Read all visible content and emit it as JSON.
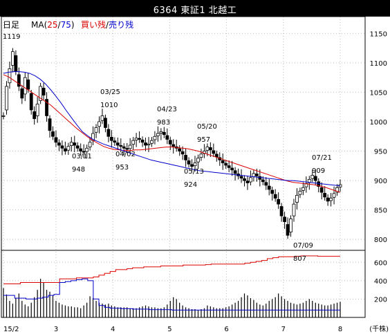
{
  "title": "6364 東証1 北越工",
  "legend": {
    "period": "日足",
    "ma_prefix": "MA(",
    "ma_short": "25",
    "ma_sep": "/",
    "ma_long": "75",
    "ma_suffix": ")",
    "buy_label": "買い残",
    "slash": "/",
    "sell_label": "売り残"
  },
  "colors": {
    "ma_short": "#dd0000",
    "ma_long": "#0000cc",
    "buy": "#dd0000",
    "sell": "#0000cc",
    "grid": "#bbbbbb",
    "axis": "#000000"
  },
  "chart_data": {
    "type": "candlestick",
    "price_axis": {
      "ylim": [
        785,
        1155
      ],
      "ticks": [
        800,
        850,
        900,
        950,
        1000,
        1050,
        1100,
        1150
      ]
    },
    "volume_axis": {
      "unit": "(千株)",
      "ylim": [
        0,
        700
      ],
      "ticks": [
        200,
        400,
        600
      ]
    },
    "x_labels": [
      "15/2",
      "3",
      "4",
      "5",
      "6",
      "7",
      "8"
    ],
    "annotations": [
      {
        "date": "",
        "value": "1119"
      },
      {
        "date": "03/11",
        "value": "948"
      },
      {
        "date": "03/25",
        "value": "1010"
      },
      {
        "date": "04/02",
        "value": "953"
      },
      {
        "date": "04/23",
        "value": "983"
      },
      {
        "date": "05/13",
        "value": "924"
      },
      {
        "date": "05/20",
        "value": "957"
      },
      {
        "date": "07/09",
        "value": "807"
      },
      {
        "date": "07/21",
        "value": "909"
      }
    ],
    "price_path": [
      1010,
      1060,
      1090,
      1119,
      1085,
      1060,
      1040,
      1075,
      1055,
      1020,
      1005,
      1030,
      1060,
      1045,
      1010,
      985,
      975,
      965,
      960,
      955,
      950,
      958,
      965,
      960,
      955,
      950,
      948,
      955,
      965,
      980,
      990,
      1000,
      1010,
      990,
      975,
      968,
      965,
      960,
      958,
      955,
      953,
      960,
      968,
      972,
      970,
      965,
      960,
      962,
      968,
      975,
      980,
      983,
      978,
      970,
      962,
      958,
      955,
      950,
      945,
      935,
      928,
      924,
      930,
      938,
      945,
      950,
      957,
      952,
      946,
      940,
      935,
      930,
      926,
      922,
      918,
      912,
      908,
      904,
      900,
      896,
      905,
      912,
      908,
      902,
      898,
      892,
      885,
      878,
      870,
      860,
      840,
      830,
      807,
      835,
      860,
      875,
      882,
      888,
      895,
      902,
      909,
      900,
      890,
      880,
      872,
      865,
      870,
      878,
      888,
      893
    ],
    "ma25_path": [
      1080,
      1076,
      1070,
      1064,
      1058,
      1052,
      1046,
      1040,
      1034,
      1028,
      1020,
      1012,
      1004,
      996,
      988,
      981,
      974,
      968,
      963,
      958,
      955,
      953,
      952,
      951,
      951,
      952,
      952,
      953,
      954,
      955,
      956,
      957,
      957,
      956,
      955,
      954,
      952,
      950,
      947,
      944,
      941,
      938,
      935,
      932,
      929,
      926,
      923,
      920,
      917,
      914,
      911,
      908,
      905,
      902,
      899,
      897,
      896,
      895,
      894,
      893,
      891,
      889,
      886,
      883,
      880
    ],
    "ma75_path": [
      1082,
      1084,
      1085,
      1085,
      1084,
      1082,
      1078,
      1072,
      1064,
      1054,
      1043,
      1031,
      1018,
      1006,
      994,
      983,
      976,
      970,
      966,
      962,
      959,
      956,
      953,
      950,
      947,
      944,
      941,
      938,
      935,
      933,
      931,
      929,
      927,
      925,
      923,
      921,
      919,
      917,
      916,
      915,
      914,
      913,
      912,
      911,
      910,
      909,
      908,
      907,
      906,
      905,
      904,
      903,
      902,
      901,
      900,
      900,
      899,
      898,
      897,
      896,
      895,
      894,
      893,
      892,
      891
    ],
    "buy_margin": [
      365,
      365,
      365,
      380,
      380,
      380,
      380,
      380,
      380,
      380,
      420,
      420,
      420,
      430,
      430,
      430,
      440,
      460,
      480,
      500,
      520,
      520,
      530,
      540,
      540,
      550,
      550,
      550,
      560,
      560,
      560,
      560,
      570,
      570,
      570,
      570,
      575,
      580,
      580,
      580,
      580,
      580,
      580,
      590,
      600,
      610,
      620,
      640,
      650,
      660,
      660,
      660,
      665,
      670,
      670,
      670,
      665,
      665,
      665,
      665
    ],
    "sell_margin": [
      240,
      240,
      210,
      210,
      200,
      200,
      210,
      220,
      240,
      250,
      380,
      390,
      400,
      410,
      420,
      400,
      200,
      130,
      110,
      100,
      100,
      95,
      95,
      90,
      90,
      90,
      85,
      85,
      85,
      85,
      80,
      80,
      80,
      80,
      80,
      80,
      80,
      80,
      80,
      80,
      80,
      80,
      80,
      80,
      80,
      80,
      80,
      80,
      80,
      80,
      80,
      80,
      80,
      80,
      80,
      80,
      80,
      80,
      80,
      80
    ],
    "volume": [
      320,
      250,
      180,
      150,
      210,
      260,
      180,
      140,
      120,
      160,
      220,
      300,
      420,
      380,
      300,
      280,
      240,
      180,
      160,
      140,
      130,
      120,
      120,
      110,
      110,
      100,
      130,
      160,
      230,
      210,
      180,
      160,
      150,
      140,
      150,
      130,
      120,
      110,
      110,
      110,
      110,
      100,
      100,
      100,
      110,
      120,
      130,
      120,
      110,
      110,
      100,
      100,
      110,
      140,
      180,
      220,
      200,
      160,
      130,
      110,
      100,
      90,
      90,
      80,
      90,
      100,
      130,
      120,
      110,
      100,
      100,
      100,
      110,
      120,
      140,
      160,
      180,
      220,
      260,
      240,
      210,
      190,
      160,
      140,
      130,
      150,
      180,
      200,
      220,
      260,
      230,
      200,
      180,
      160,
      150,
      140,
      150,
      160,
      180,
      200,
      180,
      160,
      150,
      140,
      130,
      130,
      140,
      150,
      160,
      170
    ]
  }
}
